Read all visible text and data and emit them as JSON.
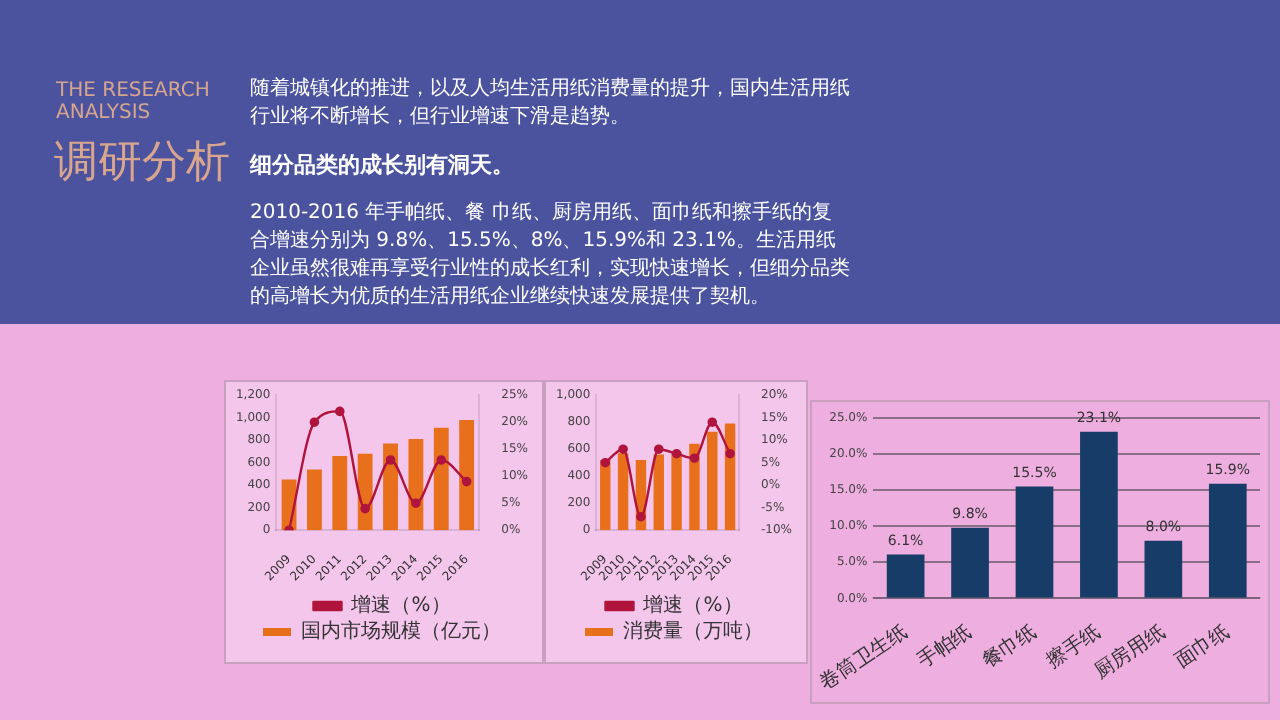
{
  "chart_data": [
    {
      "type": "other",
      "subtitle": "THE RESEARCH ANALYSIS",
      "title": "调研分析",
      "annotations": [
        "随着城镇化的推进，以及人均生活用纸消费量的提升，国内生活用纸行业将不断增长，但行业增速下滑是趋势。",
        "细分品类的成长别有洞天。",
        "2010-2016  年手帕纸、餐  巾纸、厨房用纸、面巾纸和擦手纸的复合增速分别为 9.8%、15.5%、8%、15.9%和 23.1%。生活用纸企业虽然很难再享受行业性的成长红利，实现快速增长，但细分品类的高增长为优质的生活用纸企业继续快速发展提供了契机。"
      ]
    },
    {
      "type": "bar",
      "categories": [
        "2009",
        "2010",
        "2011",
        "2012",
        "2013",
        "2014",
        "2015",
        "2016"
      ],
      "series": [
        {
          "name": "国内市场规模（亿元）",
          "color": "#e8701c",
          "values": [
            450,
            540,
            660,
            680,
            770,
            810,
            910,
            980
          ]
        },
        {
          "name": "增速（%）",
          "type": "line",
          "axis": "y2",
          "color": "#b0143c",
          "values": [
            0,
            20,
            22,
            4,
            13,
            5,
            13,
            9
          ]
        }
      ],
      "ylim": [
        0,
        1200
      ],
      "yticks": [
        0,
        200,
        400,
        600,
        800,
        {
          "value": 1000,
          "label": "1,000"
        },
        {
          "value": 1200,
          "label": "1,200"
        }
      ],
      "y2lim": [
        0,
        25
      ],
      "y2ticks": [
        {
          "value": 0,
          "label": "0%"
        },
        {
          "value": 5,
          "label": "5%"
        },
        {
          "value": 10,
          "label": "10%"
        },
        {
          "value": 15,
          "label": "15%"
        },
        {
          "value": 20,
          "label": "20%"
        },
        {
          "value": 25,
          "label": "25%"
        }
      ],
      "legend": "bottom",
      "marker": "circle"
    },
    {
      "type": "bar",
      "categories": [
        "2009",
        "2010",
        "2011",
        "2012",
        "2013",
        "2014",
        "2015",
        "2016"
      ],
      "series": [
        {
          "name": "消费量（万吨）",
          "color": "#e8701c",
          "values": [
            520,
            570,
            520,
            560,
            580,
            640,
            730,
            790
          ]
        },
        {
          "name": "增速（%）",
          "type": "line",
          "axis": "y2",
          "color": "#b0143c",
          "values": [
            5,
            8,
            -7,
            8,
            7,
            6,
            14,
            7
          ]
        }
      ],
      "ylim": [
        0,
        1000
      ],
      "yticks": [
        0,
        200,
        400,
        600,
        800,
        {
          "value": 1000,
          "label": "1,000"
        }
      ],
      "y2lim": [
        -10,
        20
      ],
      "y2ticks": [
        {
          "value": -10,
          "label": "-10%"
        },
        {
          "value": -5,
          "label": "-5%"
        },
        {
          "value": 0,
          "label": "0%"
        },
        {
          "value": 5,
          "label": "5%"
        },
        {
          "value": 10,
          "label": "10%"
        },
        {
          "value": 15,
          "label": "15%"
        },
        {
          "value": 20,
          "label": "20%"
        }
      ],
      "legend": "bottom",
      "marker": "circle"
    },
    {
      "type": "bar",
      "categories": [
        "卷筒卫生纸",
        "手帕纸",
        "餐巾纸",
        "擦手纸",
        "厨房用纸",
        "面巾纸"
      ],
      "values": [
        6.1,
        9.8,
        15.5,
        23.1,
        8.0,
        15.9
      ],
      "color": "#173c68",
      "value_labels": [
        "6.1%",
        "9.8%",
        "15.5%",
        "23.1%",
        "8.0%",
        "15.9%"
      ],
      "ylim": [
        0,
        25
      ],
      "yticks": [
        {
          "value": 0,
          "label": "0.0%"
        },
        {
          "value": 5,
          "label": "5.0%"
        },
        {
          "value": 10,
          "label": "10.0%"
        },
        {
          "value": 15,
          "label": "15.0%"
        },
        {
          "value": 20,
          "label": "20.0%"
        },
        {
          "value": 25,
          "label": "25.0%"
        }
      ],
      "grid": "y"
    }
  ]
}
